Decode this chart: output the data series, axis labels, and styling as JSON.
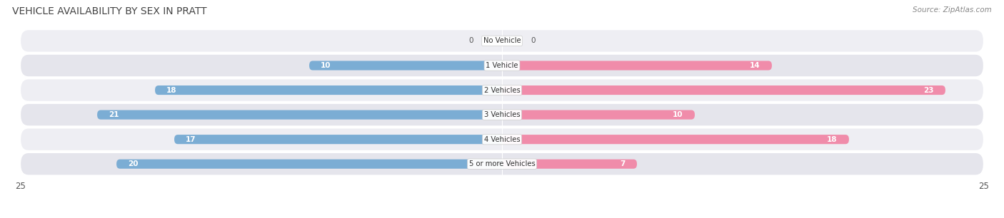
{
  "title": "VEHICLE AVAILABILITY BY SEX IN PRATT",
  "source": "Source: ZipAtlas.com",
  "categories": [
    "No Vehicle",
    "1 Vehicle",
    "2 Vehicles",
    "3 Vehicles",
    "4 Vehicles",
    "5 or more Vehicles"
  ],
  "male_values": [
    0,
    10,
    18,
    21,
    17,
    20
  ],
  "female_values": [
    0,
    14,
    23,
    10,
    18,
    7
  ],
  "male_color": "#7BADD4",
  "female_color": "#F08CAA",
  "xlim": 25,
  "bar_height": 0.38,
  "title_fontsize": 10,
  "label_fontsize": 7.5,
  "tick_fontsize": 8.5,
  "source_fontsize": 7.5,
  "row_colors": [
    "#EEEEF3",
    "#E5E5EC"
  ]
}
